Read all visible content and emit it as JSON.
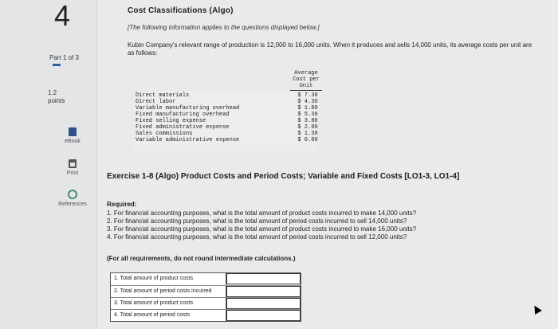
{
  "sidebar": {
    "question_number": "4",
    "part": "Part 1 of 3",
    "points_value": "1.2",
    "points_label": "points",
    "tools": [
      {
        "label": "eBook",
        "icon": "ebook-icon"
      },
      {
        "label": "Print",
        "icon": "print-icon"
      },
      {
        "label": "References",
        "icon": "references-icon"
      }
    ],
    "accent": "#2a5fa8"
  },
  "header": {
    "cut_title": "Cost Classifications (Algo)"
  },
  "intro": "[The following information applies to the questions displayed below.]",
  "scenario": "Kubin Company's relevant range of production is 12,000 to 16,000 units. When it produces and sells 14,000 units, its average costs per unit are as follows:",
  "cost_table": {
    "header_lines": [
      "Average",
      "Cost per",
      "Unit"
    ],
    "rows": [
      {
        "label": "Direct materials",
        "value": "$ 7.30"
      },
      {
        "label": "Direct labor",
        "value": "$ 4.30"
      },
      {
        "label": "Variable manufacturing overhead",
        "value": "$ 1.80"
      },
      {
        "label": "Fixed manufacturing overhead",
        "value": "$ 5.30"
      },
      {
        "label": "Fixed selling expense",
        "value": "$ 3.80"
      },
      {
        "label": "Fixed administrative expense",
        "value": "$ 2.80"
      },
      {
        "label": "Sales commissions",
        "value": "$ 1.30"
      },
      {
        "label": "Variable administrative expense",
        "value": "$ 0.80"
      }
    ]
  },
  "exercise_title": "Exercise 1-8 (Algo) Product Costs and Period Costs; Variable and Fixed Costs [LO1-3, LO1-4]",
  "required": {
    "heading": "Required:",
    "items": [
      "1. For financial accounting purposes, what is the total amount of product costs incurred to make 14,000 units?",
      "2. For financial accounting purposes, what is the total amount of period costs incurred to sell 14,000 units?",
      "3. For financial accounting purposes, what is the total amount of product costs incurred to make 16,000 units?",
      "4. For financial accounting purposes, what is the total amount of period costs incurred to sell 12,000 units?"
    ],
    "note": "(For all requirements, do not round intermediate calculations.)"
  },
  "answers": [
    {
      "label": "1. Total amount of product costs",
      "value": ""
    },
    {
      "label": "2. Total amount of period costs incurred",
      "value": ""
    },
    {
      "label": "3. Total amount of product costs",
      "value": ""
    },
    {
      "label": "4. Total amount of period costs",
      "value": ""
    }
  ]
}
